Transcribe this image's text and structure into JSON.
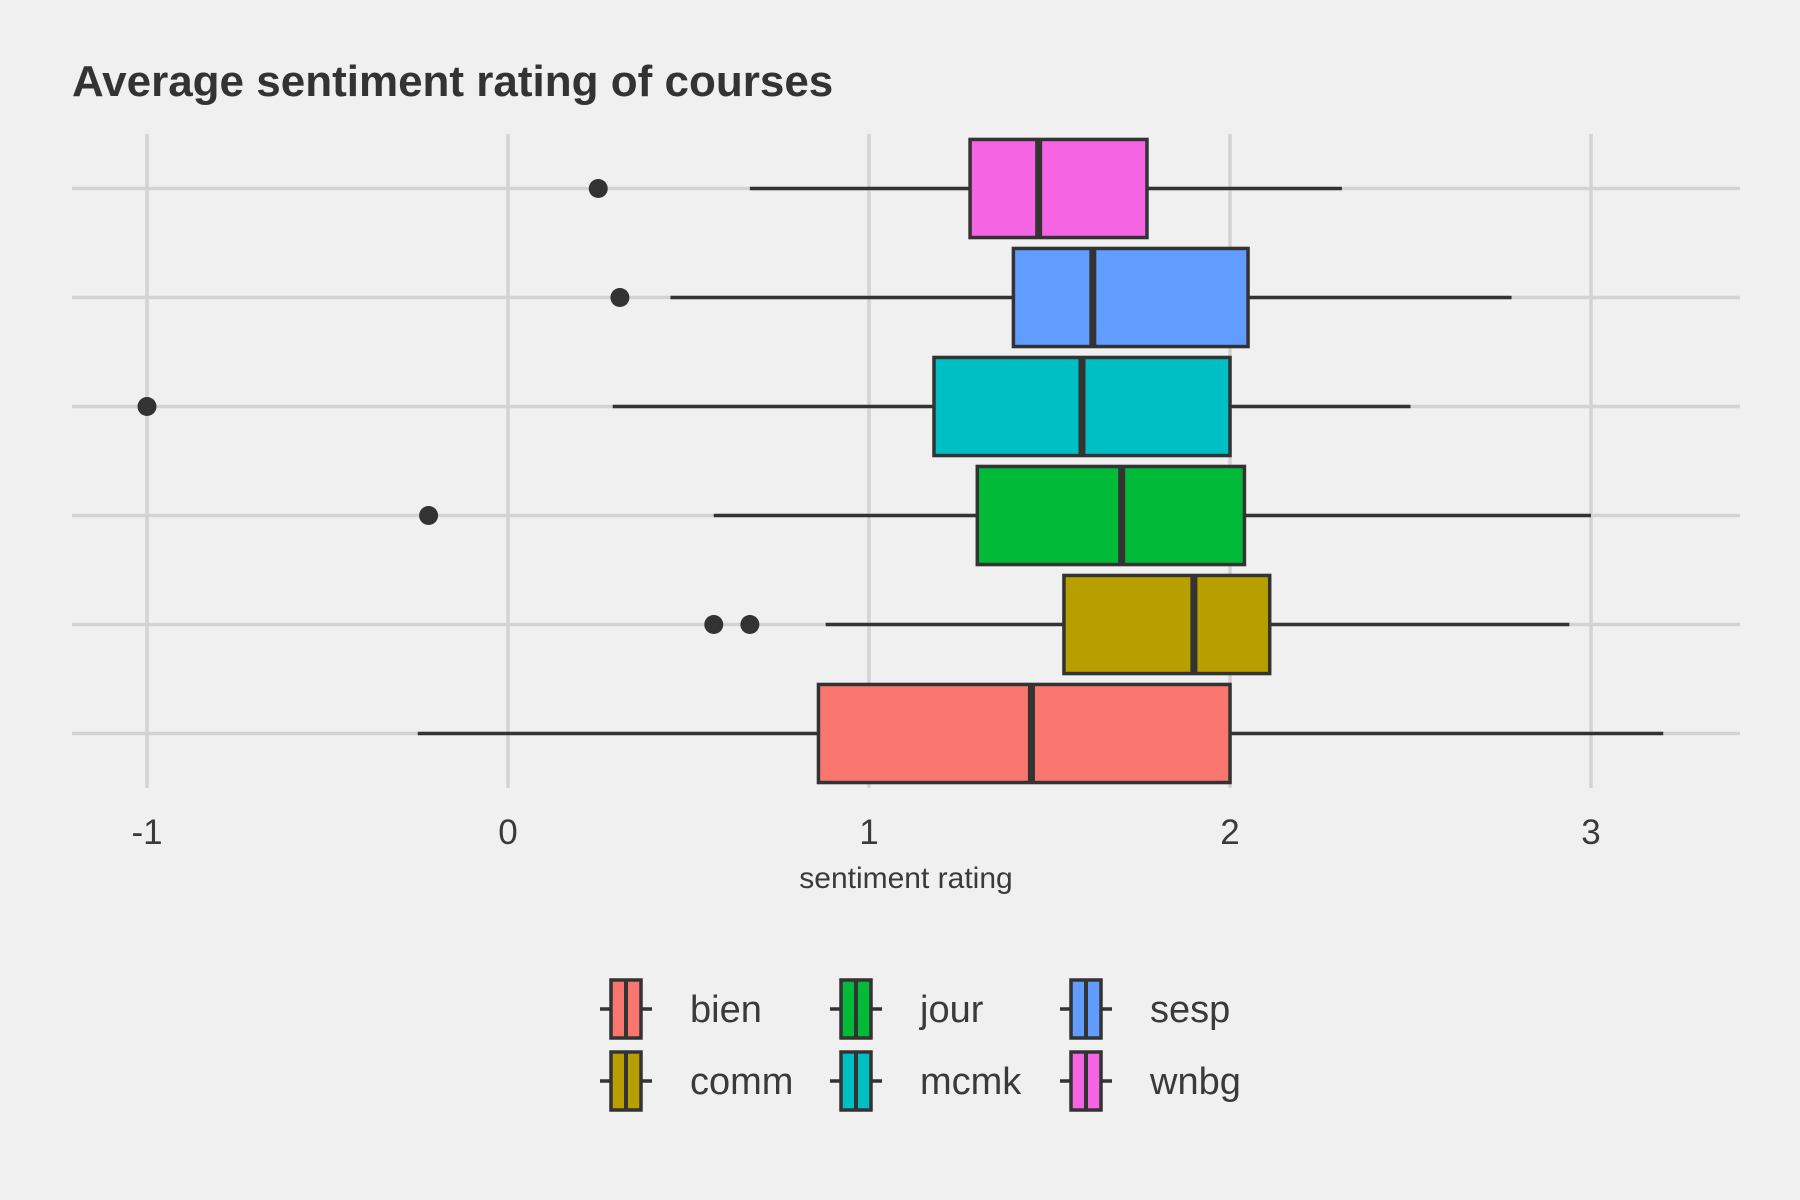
{
  "chart_data": {
    "type": "boxplot",
    "orientation": "horizontal",
    "title": "Average sentiment rating of courses",
    "xlabel": "sentiment rating",
    "ylabel": "",
    "xlim": [
      -1.2,
      3.4
    ],
    "x_ticks": [
      -1,
      0,
      1,
      2,
      3
    ],
    "x_tick_labels": [
      "-1",
      "0",
      "1",
      "2",
      "3"
    ],
    "grid": true,
    "legend_position": "bottom",
    "series": [
      {
        "name": "bien",
        "color": "#F8766D",
        "whisker_low": -0.25,
        "q1": 0.86,
        "median": 1.45,
        "q3": 2.0,
        "whisker_high": 3.2,
        "outliers": []
      },
      {
        "name": "comm",
        "color": "#B79F00",
        "whisker_low": 0.88,
        "q1": 1.54,
        "median": 1.9,
        "q3": 2.11,
        "whisker_high": 2.94,
        "outliers": [
          0.57,
          0.67
        ]
      },
      {
        "name": "jour",
        "color": "#00BA38",
        "whisker_low": 0.57,
        "q1": 1.3,
        "median": 1.7,
        "q3": 2.04,
        "whisker_high": 3.0,
        "outliers": [
          -0.22
        ]
      },
      {
        "name": "mcmk",
        "color": "#00BFC4",
        "whisker_low": 0.29,
        "q1": 1.18,
        "median": 1.59,
        "q3": 2.0,
        "whisker_high": 2.5,
        "outliers": [
          -1.0
        ]
      },
      {
        "name": "sesp",
        "color": "#619CFF",
        "whisker_low": 0.45,
        "q1": 1.4,
        "median": 1.62,
        "q3": 2.05,
        "whisker_high": 2.78,
        "outliers": [
          0.31
        ]
      },
      {
        "name": "wnbg",
        "color": "#F564E3",
        "whisker_low": 0.67,
        "q1": 1.28,
        "median": 1.47,
        "q3": 1.77,
        "whisker_high": 2.31,
        "outliers": [
          0.25
        ]
      }
    ],
    "legend_order": [
      "bien",
      "jour",
      "sesp",
      "comm",
      "mcmk",
      "wnbg"
    ]
  }
}
